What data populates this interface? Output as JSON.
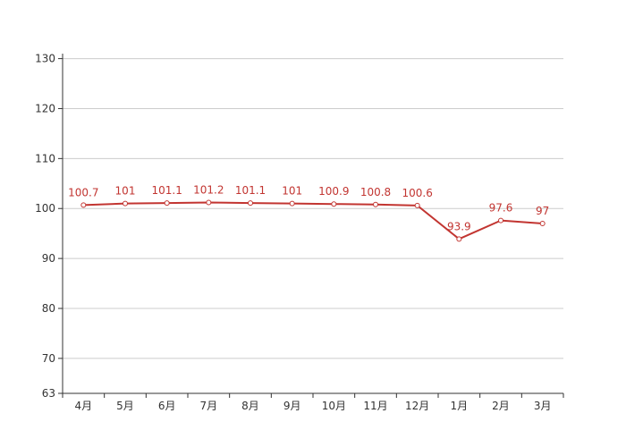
{
  "chart_data": {
    "type": "line",
    "categories": [
      "4月",
      "5月",
      "6月",
      "7月",
      "8月",
      "9月",
      "10月",
      "11月",
      "12月",
      "1月",
      "2月",
      "3月"
    ],
    "series": [
      {
        "values": [
          100.7,
          101,
          101.1,
          101.2,
          101.1,
          101,
          100.9,
          100.8,
          100.6,
          93.9,
          97.6,
          97
        ],
        "labels": [
          "100.7",
          "101",
          "101.1",
          "101.2",
          "101.1",
          "101",
          "100.9",
          "100.8",
          "100.6",
          "93.9",
          "97.6",
          "97"
        ]
      }
    ],
    "yticks": [
      "63",
      "70",
      "80",
      "90",
      "100",
      "110",
      "120",
      "130"
    ],
    "ylim": [
      63,
      131
    ],
    "grid": true,
    "legend": "none",
    "title": "",
    "xlabel": "",
    "ylabel": "",
    "colors": {
      "series": "#c23531",
      "grid": "#cccccc",
      "axis": "#333333"
    }
  }
}
